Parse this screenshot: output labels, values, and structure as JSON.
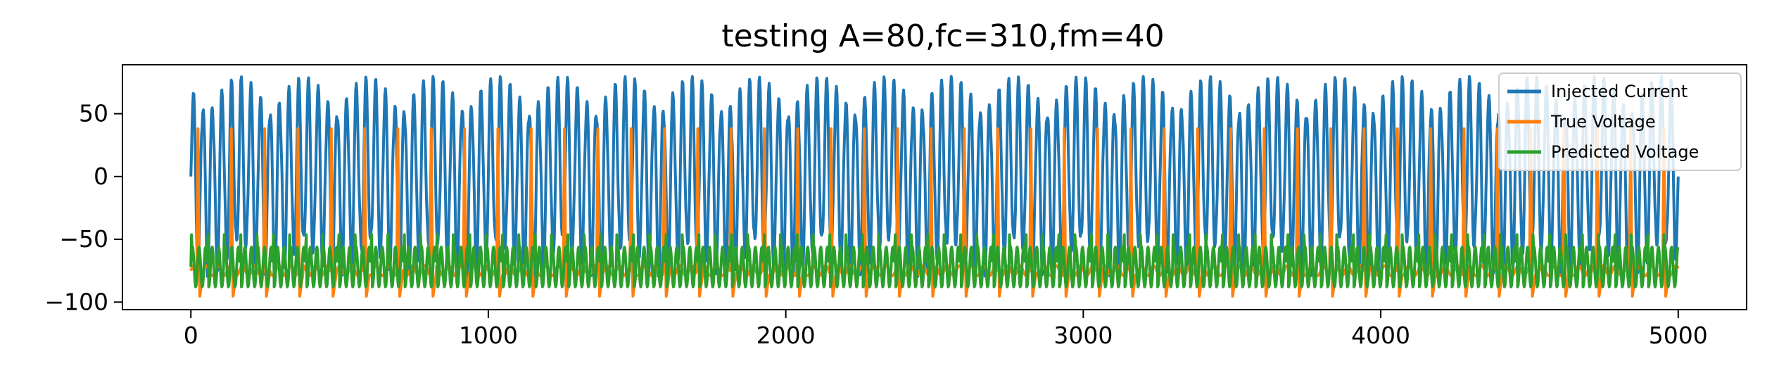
{
  "chart_data": {
    "type": "line",
    "title": "testing A=80,fc=310,fm=40",
    "xlabel": "",
    "ylabel": "",
    "xlim": [
      -230,
      5230
    ],
    "ylim": [
      -106,
      89
    ],
    "x_ticks": [
      0,
      1000,
      2000,
      3000,
      4000,
      5000
    ],
    "x_tick_labels": [
      "0",
      "1000",
      "2000",
      "3000",
      "4000",
      "5000"
    ],
    "y_ticks": [
      50,
      0,
      -50,
      -100
    ],
    "y_tick_labels": [
      "50",
      "0",
      "−50",
      "−100"
    ],
    "grid": false,
    "legend_position": "top-right",
    "x_range": [
      0,
      5000
    ],
    "series": [
      {
        "name": "Injected Current",
        "color": "#1f77b4",
        "model": "A*sin(2*pi*fc*t) modulated by sin(2*pi*fm*t)",
        "amplitude": 80,
        "fc": 310,
        "fm": 40
      },
      {
        "name": "True Voltage",
        "color": "#ff7f0e",
        "baseline": -75,
        "spike_peak": 38,
        "trough": -97,
        "spike_period": 112,
        "first_spike_x": 20
      },
      {
        "name": "Predicted Voltage",
        "color": "#2ca02c",
        "baseline": -72,
        "oscillation_low": -95,
        "oscillation_high": -45,
        "oscillation_period": 22
      }
    ]
  }
}
